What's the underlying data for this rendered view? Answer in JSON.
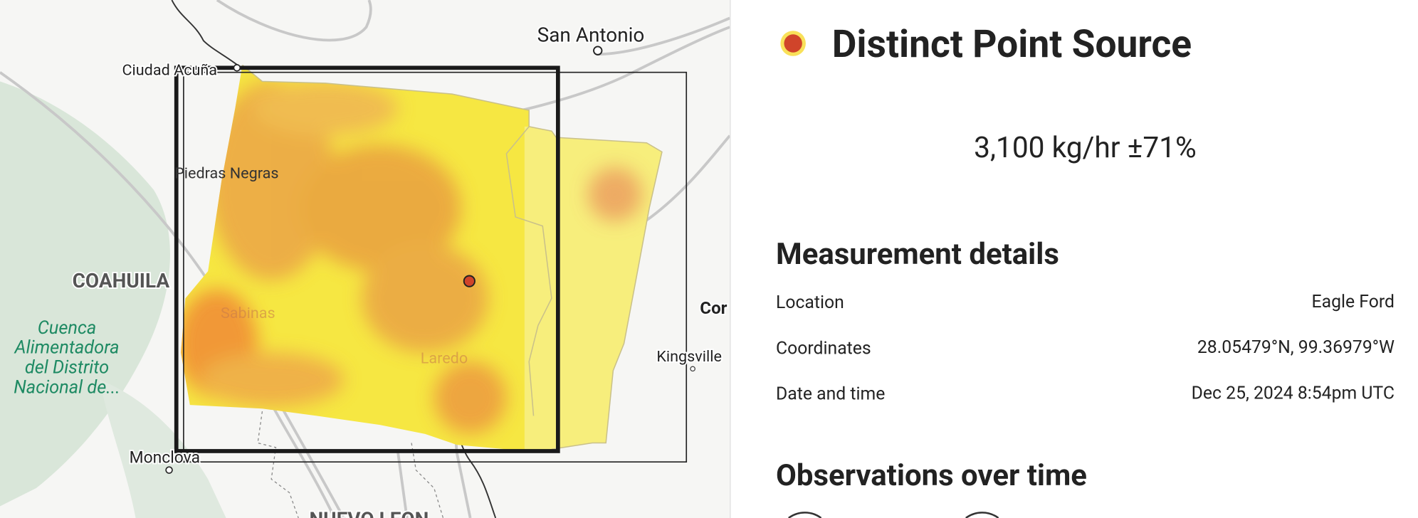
{
  "map": {
    "labels": [
      "San Antonio",
      "Ciudad Acuña",
      "Piedras Negras",
      "COAHUILA",
      "Sabinas",
      "Laredo",
      "Kingsville",
      "Cor",
      "Monclova",
      "NUEVO LEON"
    ],
    "region_label": [
      "Cuenca",
      "Alimentadora",
      "del Distrito",
      "Nacional de..."
    ]
  },
  "panel": {
    "title": "Distinct Point Source",
    "emission_rate": "3,100 kg/hr ±71%",
    "details_heading": "Measurement details",
    "details": [
      [
        "Location",
        "Eagle Ford"
      ],
      [
        "Coordinates",
        "28.05479°N, 99.36979°W"
      ],
      [
        "Date and time",
        "Dec 25, 2024 8:54pm UTC"
      ]
    ],
    "observations_heading": "Observations over time"
  }
}
